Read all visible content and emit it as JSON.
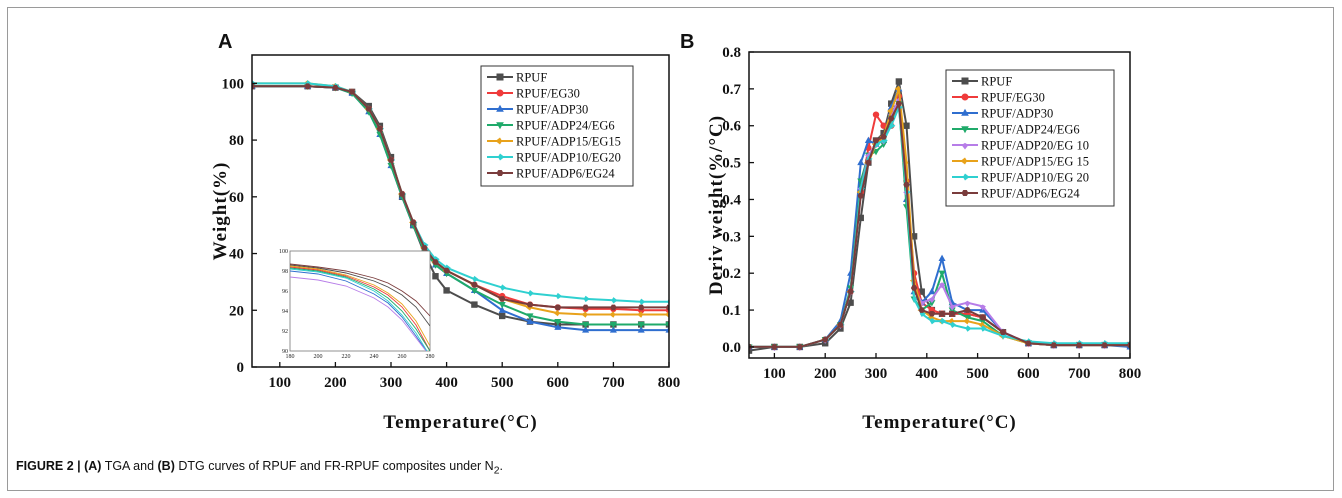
{
  "caption": {
    "figure_label": "FIGURE 2 | ",
    "part_a_letter": "(A)",
    "text_1": " TGA and ",
    "part_b_letter": "(B)",
    "text_2": " DTG curves of RPUF and FR-RPUF composites under N",
    "subscript": "2",
    "text_3": "."
  },
  "colors": {
    "RPUF": "#4d4d4d",
    "EG30": "#ef3b3b",
    "ADP30": "#2f6ecf",
    "ADP24EG6": "#1faa6a",
    "ADP20EG10": "#b77de8",
    "ADP15EG15": "#e8a21b",
    "ADP10EG20": "#2fd0d0",
    "ADP6EG24": "#7a3c3c"
  },
  "chart_data": [
    {
      "panel": "A",
      "type": "line",
      "xlabel": "Temperature(°C)",
      "ylabel": "Weight(%)",
      "xlim": [
        50,
        800
      ],
      "ylim": [
        0,
        110
      ],
      "xticks": [
        100,
        200,
        300,
        400,
        500,
        600,
        700,
        800
      ],
      "yticks": [
        0,
        20,
        40,
        60,
        80,
        100
      ],
      "legend_position": "top-right",
      "x": [
        50,
        150,
        200,
        230,
        260,
        280,
        300,
        320,
        340,
        360,
        380,
        400,
        450,
        500,
        550,
        600,
        650,
        700,
        750,
        800
      ],
      "series": [
        {
          "name": "RPUF",
          "color_key": "RPUF",
          "marker": "square",
          "values": [
            99,
            99,
            98.5,
            97,
            92,
            85,
            74,
            60,
            50,
            40,
            32,
            27,
            22,
            18,
            16,
            15,
            15,
            15,
            15,
            15
          ]
        },
        {
          "name": "RPUF/EG30",
          "color_key": "EG30",
          "marker": "circle",
          "values": [
            99,
            99,
            98.5,
            97,
            91,
            84,
            73,
            61,
            51,
            42,
            37,
            34,
            29,
            25,
            22,
            21,
            20.5,
            20.5,
            20,
            20
          ]
        },
        {
          "name": "RPUF/ADP30",
          "color_key": "ADP30",
          "marker": "triangle-up",
          "values": [
            99,
            99,
            98.5,
            96.5,
            90,
            82,
            71,
            60,
            50,
            41,
            36,
            33,
            27,
            20,
            16,
            14,
            13,
            13,
            13,
            13
          ]
        },
        {
          "name": "RPUF/ADP24/EG6",
          "color_key": "ADP24EG6",
          "marker": "triangle-down",
          "values": [
            99,
            99,
            98.5,
            96.5,
            90,
            82,
            71,
            60,
            50,
            41,
            36,
            33,
            27,
            22,
            18,
            16,
            15,
            15,
            15,
            15
          ]
        },
        {
          "name": "RPUF/ADP15/EG15",
          "color_key": "ADP15EG15",
          "marker": "diamond-left",
          "values": [
            100,
            100,
            99,
            97,
            91,
            84,
            73,
            61,
            51,
            42,
            37,
            34,
            29,
            24,
            21,
            19,
            18.5,
            18.5,
            18.5,
            18.5
          ]
        },
        {
          "name": "RPUF/ADP10/EG20",
          "color_key": "ADP10EG20",
          "marker": "diamond-right",
          "values": [
            100,
            100,
            99,
            97,
            91,
            84,
            73,
            61,
            51,
            43,
            38,
            35,
            31,
            28,
            26,
            25,
            24,
            23.5,
            23,
            23
          ]
        },
        {
          "name": "RPUF/ADP6/EG24",
          "color_key": "ADP6EG24",
          "marker": "hexagon",
          "values": [
            99,
            99,
            98.5,
            97,
            91,
            84,
            73,
            61,
            51,
            42,
            37,
            34,
            29,
            24,
            22,
            21,
            21,
            21,
            21,
            21
          ]
        }
      ],
      "inset": {
        "xlim": [
          180,
          280
        ],
        "ylim": [
          90,
          100
        ],
        "xticks": [
          180,
          200,
          220,
          240,
          260,
          280
        ],
        "yticks": [
          90,
          92,
          94,
          96,
          98,
          100
        ],
        "x": [
          180,
          200,
          220,
          240,
          250,
          260,
          270,
          280
        ],
        "series": [
          {
            "color_key": "RPUF",
            "values": [
              98.6,
              98.3,
              97.8,
              97.0,
              96.4,
              95.6,
              94.4,
              92.5
            ]
          },
          {
            "color_key": "EG30",
            "values": [
              98.4,
              98.1,
              97.5,
              96.4,
              95.6,
              94.4,
              92.6,
              90
            ]
          },
          {
            "color_key": "ADP30",
            "values": [
              98.0,
              97.7,
              97.0,
              95.7,
              94.8,
              93.4,
              91.5,
              89.5
            ]
          },
          {
            "color_key": "ADP24EG6",
            "values": [
              98.3,
              98.0,
              97.4,
              96.2,
              95.3,
              94.0,
              92.2,
              90
            ]
          },
          {
            "color_key": "ADP20EG10",
            "values": [
              97.4,
              97.1,
              96.5,
              95.3,
              94.4,
              93.1,
              91.3,
              89.5
            ]
          },
          {
            "color_key": "ADP15EG15",
            "values": [
              98.5,
              98.2,
              97.6,
              96.6,
              95.8,
              94.7,
              93.0,
              90.5
            ]
          },
          {
            "color_key": "ADP10EG20",
            "values": [
              98.2,
              97.9,
              97.3,
              96.0,
              95.0,
              93.6,
              91.8,
              89.5
            ]
          },
          {
            "color_key": "ADP6EG24",
            "values": [
              98.7,
              98.4,
              98.0,
              97.3,
              96.8,
              96.0,
              95.0,
              93.5
            ]
          }
        ]
      }
    },
    {
      "panel": "B",
      "type": "line",
      "xlabel": "Temperature(°C)",
      "ylabel": "Deriv weight(%/°C)",
      "xlim": [
        50,
        800
      ],
      "ylim": [
        -0.03,
        0.8
      ],
      "xticks": [
        100,
        200,
        300,
        400,
        500,
        600,
        700,
        800
      ],
      "yticks": [
        0.0,
        0.1,
        0.2,
        0.3,
        0.4,
        0.5,
        0.6,
        0.7,
        0.8
      ],
      "legend_position": "top-right",
      "x": [
        50,
        100,
        150,
        200,
        230,
        250,
        270,
        285,
        300,
        315,
        330,
        345,
        360,
        375,
        390,
        410,
        430,
        450,
        480,
        510,
        550,
        600,
        650,
        700,
        750,
        800
      ],
      "series": [
        {
          "name": "RPUF",
          "color_key": "RPUF",
          "marker": "square",
          "values": [
            -0.01,
            0,
            0,
            0.01,
            0.05,
            0.12,
            0.35,
            0.5,
            0.56,
            0.58,
            0.66,
            0.72,
            0.6,
            0.3,
            0.15,
            0.1,
            0.09,
            0.09,
            0.09,
            0.08,
            0.04,
            0.01,
            0.005,
            0.005,
            0.005,
            0.005
          ]
        },
        {
          "name": "RPUF/EG30",
          "color_key": "EG30",
          "marker": "circle",
          "values": [
            0,
            0,
            0,
            0.02,
            0.06,
            0.15,
            0.42,
            0.54,
            0.63,
            0.6,
            0.6,
            0.68,
            0.45,
            0.2,
            0.12,
            0.1,
            0.09,
            0.09,
            0.09,
            0.08,
            0.04,
            0.01,
            0.005,
            0.005,
            0.005,
            0.005
          ]
        },
        {
          "name": "RPUF/ADP30",
          "color_key": "ADP30",
          "marker": "triangle-up",
          "values": [
            0,
            0,
            0,
            0.02,
            0.07,
            0.2,
            0.5,
            0.56,
            0.55,
            0.56,
            0.65,
            0.7,
            0.4,
            0.15,
            0.12,
            0.15,
            0.24,
            0.12,
            0.1,
            0.1,
            0.04,
            0.01,
            0.005,
            0.005,
            0.005,
            0
          ]
        },
        {
          "name": "RPUF/ADP24/EG6",
          "color_key": "ADP24EG6",
          "marker": "triangle-down",
          "values": [
            0,
            0,
            0,
            0.02,
            0.06,
            0.16,
            0.45,
            0.52,
            0.53,
            0.55,
            0.62,
            0.66,
            0.38,
            0.13,
            0.1,
            0.12,
            0.2,
            0.1,
            0.08,
            0.07,
            0.03,
            0.01,
            0.005,
            0.005,
            0.005,
            0.005
          ]
        },
        {
          "name": "RPUF/ADP20/EG 10",
          "color_key": "ADP20EG10",
          "marker": "diamond-down",
          "values": [
            0,
            0,
            0,
            0.02,
            0.06,
            0.15,
            0.43,
            0.52,
            0.55,
            0.56,
            0.63,
            0.67,
            0.42,
            0.16,
            0.12,
            0.13,
            0.17,
            0.11,
            0.12,
            0.11,
            0.04,
            0.01,
            0.005,
            0.005,
            0.005,
            0.005
          ]
        },
        {
          "name": "RPUF/ADP15/EG 15",
          "color_key": "ADP15EG15",
          "marker": "diamond-left",
          "values": [
            0,
            0,
            0,
            0.02,
            0.06,
            0.15,
            0.42,
            0.5,
            0.55,
            0.57,
            0.64,
            0.7,
            0.5,
            0.18,
            0.1,
            0.08,
            0.07,
            0.07,
            0.07,
            0.06,
            0.03,
            0.01,
            0.005,
            0.005,
            0.005,
            0.005
          ]
        },
        {
          "name": "RPUF/ADP10/EG 20",
          "color_key": "ADP10EG20",
          "marker": "diamond-right",
          "values": [
            0,
            0,
            0,
            0.02,
            0.06,
            0.15,
            0.43,
            0.51,
            0.55,
            0.56,
            0.6,
            0.65,
            0.42,
            0.13,
            0.09,
            0.07,
            0.07,
            0.06,
            0.05,
            0.05,
            0.03,
            0.015,
            0.01,
            0.01,
            0.01,
            0.01
          ]
        },
        {
          "name": "RPUF/ADP6/EG24",
          "color_key": "ADP6EG24",
          "marker": "hexagon",
          "values": [
            0,
            0,
            0,
            0.02,
            0.06,
            0.15,
            0.41,
            0.5,
            0.56,
            0.57,
            0.62,
            0.66,
            0.44,
            0.16,
            0.1,
            0.09,
            0.09,
            0.09,
            0.1,
            0.08,
            0.04,
            0.01,
            0.005,
            0.005,
            0.005,
            0.005
          ]
        }
      ]
    }
  ]
}
